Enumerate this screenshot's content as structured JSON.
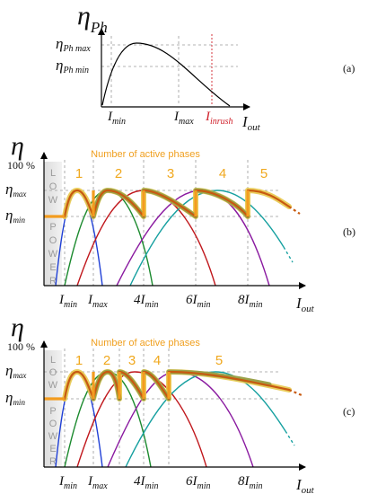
{
  "panel_a": {
    "label": "(a)",
    "y_axis_symbol": "η",
    "y_axis_subscript": "Ph",
    "y_ticks": [
      {
        "main": "η",
        "sub": "Ph max"
      },
      {
        "main": "η",
        "sub": "Ph min"
      }
    ],
    "x_ticks": [
      {
        "main": "I",
        "sub": "min"
      },
      {
        "main": "I",
        "sub": "max"
      },
      {
        "main": "I",
        "sub": "inrush"
      }
    ],
    "x_axis_label": {
      "main": "I",
      "sub": "out"
    },
    "colors": {
      "inrush": "#d0202a",
      "curve": "#000000"
    }
  },
  "panel_b": {
    "label": "(b)",
    "phases_title": "Number of active phases",
    "phase_numbers": [
      "1",
      "2",
      "3",
      "4",
      "5"
    ],
    "y_axis_symbol": "η",
    "y_top_label": "100 %",
    "y_ticks": [
      {
        "main": "η",
        "sub": "max"
      },
      {
        "main": "η",
        "sub": "min"
      }
    ],
    "low_power_letters": [
      "L",
      "O",
      "W",
      "P",
      "O",
      "W",
      "E",
      "R"
    ],
    "x_ticks": [
      {
        "main": "I",
        "sub": "min"
      },
      {
        "main": "I",
        "sub": "max"
      },
      {
        "main": "4I",
        "sub": "min"
      },
      {
        "main": "6I",
        "sub": "min"
      },
      {
        "main": "8I",
        "sub": "min"
      }
    ],
    "x_axis_label": {
      "main": "I",
      "sub": "out"
    }
  },
  "panel_c": {
    "label": "(c)",
    "phases_title": "Number of active phases",
    "phase_numbers": [
      "1",
      "2",
      "3",
      "4",
      "5"
    ],
    "y_axis_symbol": "η",
    "y_top_label": "100 %",
    "y_ticks": [
      {
        "main": "η",
        "sub": "max"
      },
      {
        "main": "η",
        "sub": "min"
      }
    ],
    "low_power_letters": [
      "L",
      "O",
      "W",
      "P",
      "O",
      "W",
      "E",
      "R"
    ],
    "x_ticks": [
      {
        "main": "I",
        "sub": "min"
      },
      {
        "main": "I",
        "sub": "max"
      },
      {
        "main": "4I",
        "sub": "min"
      },
      {
        "main": "6I",
        "sub": "min"
      },
      {
        "main": "8I",
        "sub": "min"
      }
    ],
    "x_axis_label": {
      "main": "I",
      "sub": "out"
    }
  },
  "series_colors": {
    "phase1": "#1f3fd6",
    "phase2": "#1b8a2e",
    "phase3": "#c0171c",
    "phase4": "#8a1aa0",
    "phase5": "#16a0a0",
    "highlight": "#f39c1f",
    "low_power_band": "#e6e6e6"
  }
}
